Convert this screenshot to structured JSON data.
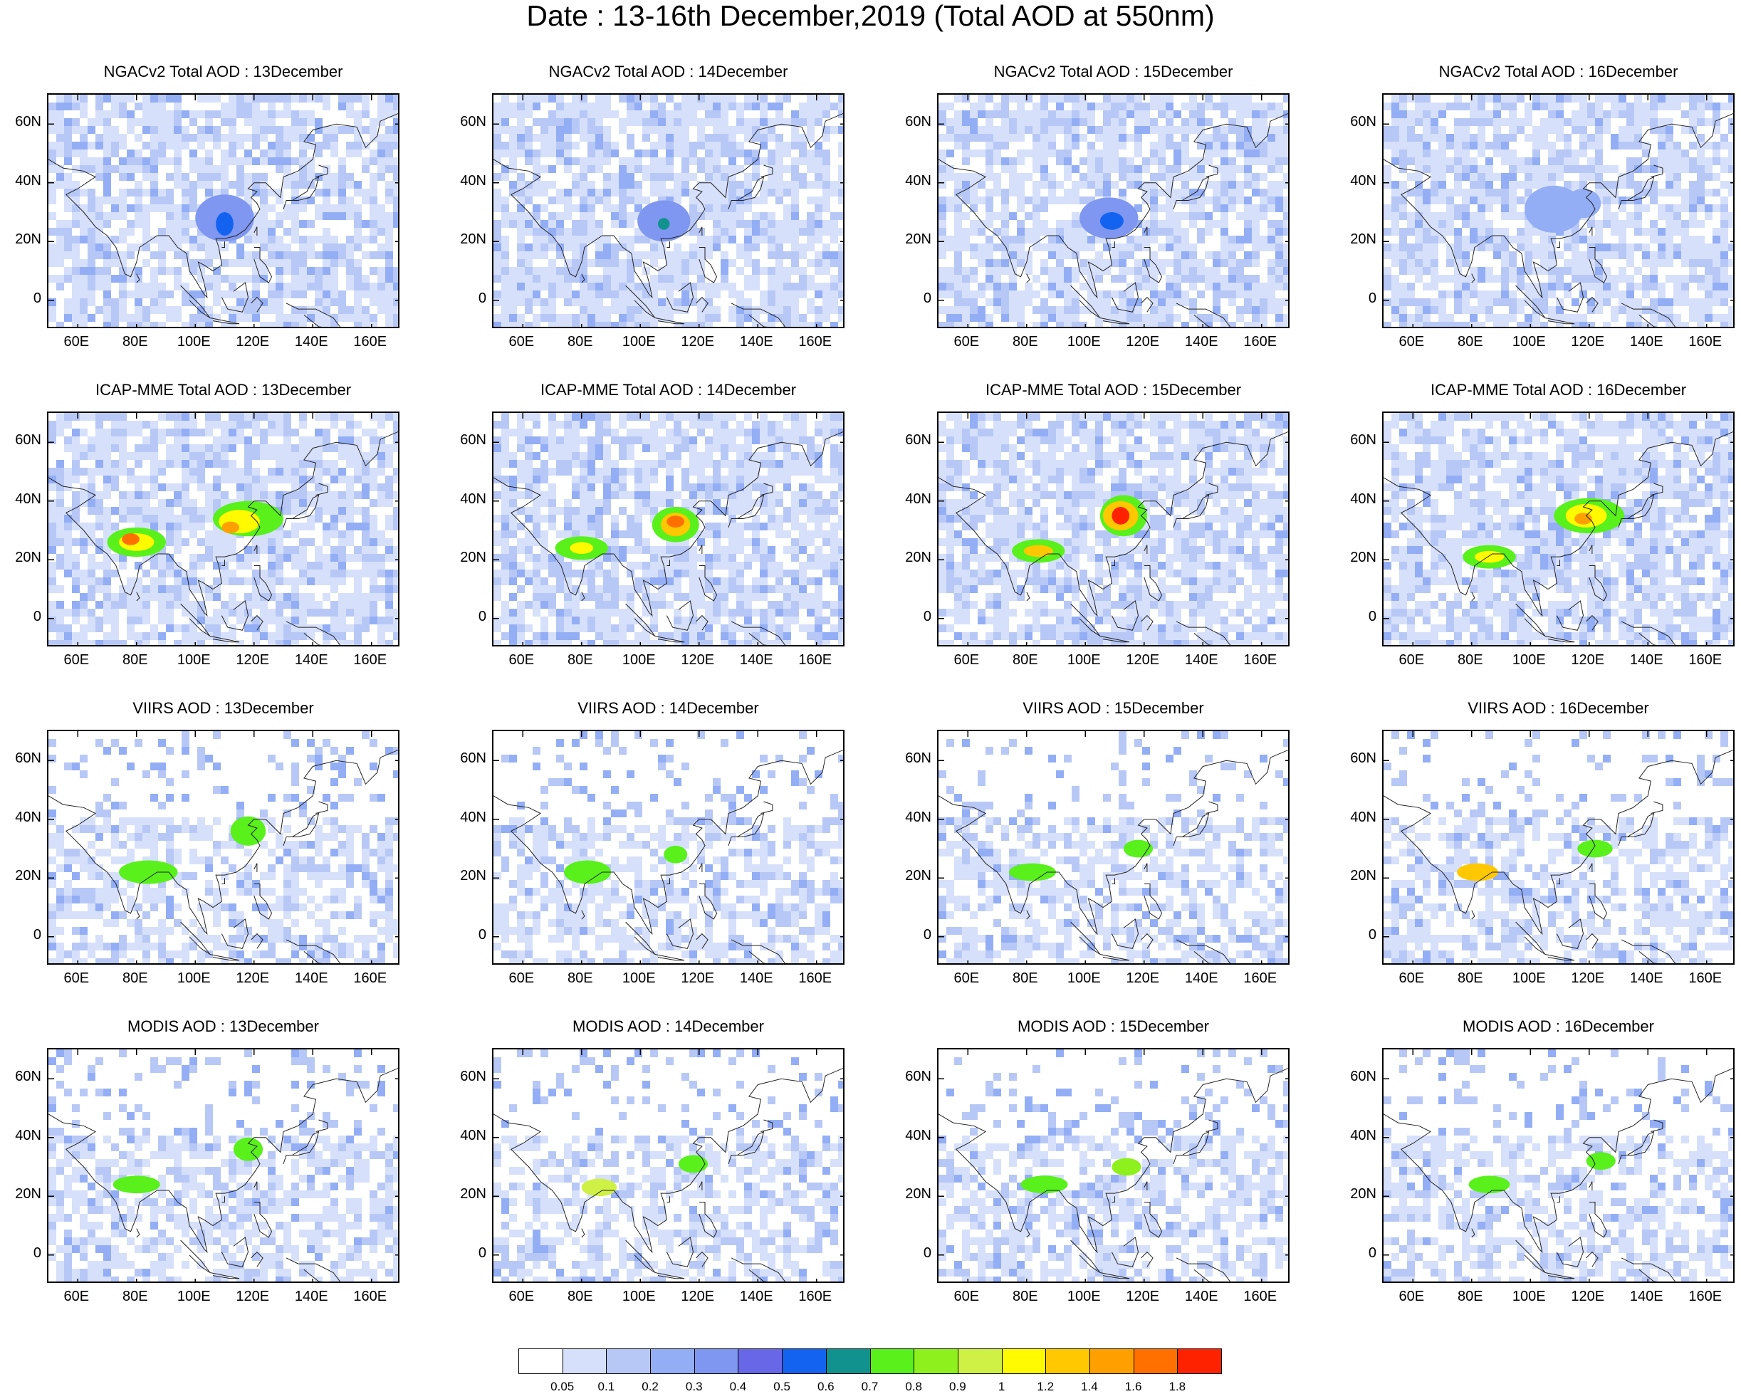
{
  "title": "Date : 13-16th December,2019 (Total AOD at 550nm)",
  "days": [
    "13December",
    "14December",
    "15December",
    "16December"
  ],
  "rows": [
    {
      "product": "NGACv2 Total AOD",
      "titles": [
        "NGACv2 Total AOD : 13December",
        "NGACv2 Total AOD : 14December",
        "NGACv2 Total AOD : 15December",
        "NGACv2 Total AOD : 16December"
      ]
    },
    {
      "product": "ICAP-MME Total AOD",
      "titles": [
        "ICAP-MME Total AOD : 13December",
        "ICAP-MME Total AOD : 14December",
        "ICAP-MME Total AOD : 15December",
        "ICAP-MME Total AOD : 16December"
      ]
    },
    {
      "product": "VIIRS AOD",
      "titles": [
        "VIIRS AOD : 13December",
        "VIIRS AOD : 14December",
        "VIIRS AOD : 15December",
        "VIIRS AOD : 16December"
      ]
    },
    {
      "product": "MODIS AOD",
      "titles": [
        "MODIS AOD : 13December",
        "MODIS AOD : 14December",
        "MODIS AOD : 15December",
        "MODIS AOD : 16December"
      ]
    }
  ],
  "map": {
    "lat_ticks": [
      "60N",
      "40N",
      "20N",
      "0"
    ],
    "lat_values": [
      60,
      40,
      20,
      0
    ],
    "lon_ticks": [
      "60E",
      "80E",
      "100E",
      "120E",
      "140E",
      "160E"
    ],
    "lon_values": [
      60,
      80,
      100,
      120,
      140,
      160
    ],
    "lon_range": [
      50,
      170
    ],
    "lat_range": [
      -10,
      70
    ]
  },
  "colorbar": {
    "labels": [
      "0.05",
      "0.1",
      "0.2",
      "0.3",
      "0.4",
      "0.5",
      "0.6",
      "0.7",
      "0.8",
      "0.9",
      "1",
      "1.2",
      "1.4",
      "1.6",
      "1.8"
    ],
    "colors": [
      "#ffffff",
      "#d6e0fb",
      "#b7c8f7",
      "#93aef5",
      "#7f97f0",
      "#6767e8",
      "#1463f0",
      "#12928e",
      "#59f01c",
      "#8ef01c",
      "#cff045",
      "#fffa00",
      "#ffc800",
      "#ffa000",
      "#ff7000",
      "#ff2200"
    ]
  }
}
